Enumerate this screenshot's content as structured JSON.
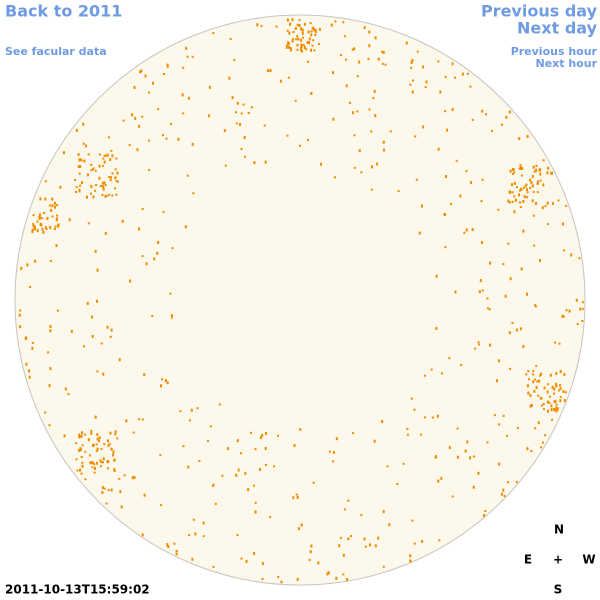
{
  "links": {
    "back_to_year": "Back to 2011",
    "facular_data": "See facular data",
    "previous_day": "Previous day",
    "next_day": "Next day",
    "previous_hour": "Previous hour",
    "next_hour": "Next hour"
  },
  "compass": {
    "north": "N",
    "east": "E",
    "center": "+",
    "west": "W",
    "south": "S"
  },
  "timestamp": "2011-10-13T15:59:02"
}
